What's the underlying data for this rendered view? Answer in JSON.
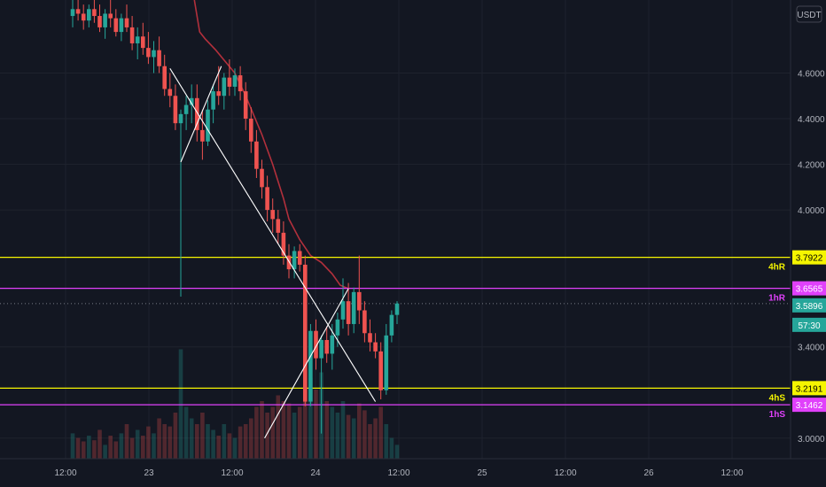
{
  "chart_data": {
    "type": "candlestick",
    "currency": "USDT",
    "xticks": [
      "12:00",
      "23",
      "12:00",
      "24",
      "12:00",
      "25",
      "12:00",
      "26",
      "12:00"
    ],
    "yticks": [
      {
        "value": 4.6,
        "label": "4.6000"
      },
      {
        "value": 4.4,
        "label": "4.4000"
      },
      {
        "value": 4.2,
        "label": "4.2000"
      },
      {
        "value": 4.0,
        "label": "4.0000"
      },
      {
        "value": 3.4,
        "label": "3.4000"
      },
      {
        "value": 3.0,
        "label": "3.0000"
      }
    ],
    "ylim": [
      2.91,
      4.92
    ],
    "price_lines": [
      {
        "name": "4hR",
        "value": 3.7922,
        "price_label": "3.7922",
        "color": "#f5f500",
        "text_color": "#000000"
      },
      {
        "name": "1hR",
        "value": 3.6565,
        "price_label": "3.6565",
        "color": "#e040fb",
        "text_color": "#ffffff"
      },
      {
        "name": "4hS",
        "value": 3.2191,
        "price_label": "3.2191",
        "color": "#f5f500",
        "text_color": "#000000"
      },
      {
        "name": "1hS",
        "value": 3.1462,
        "price_label": "3.1462",
        "color": "#e040fb",
        "text_color": "#ffffff"
      }
    ],
    "current_price": {
      "value": 3.5896,
      "label": "3.5896",
      "countdown": "57:30",
      "color": "#26a69a"
    },
    "candles": [
      [
        4.85,
        4.92,
        4.8,
        4.88
      ],
      [
        4.88,
        4.92,
        4.83,
        4.86
      ],
      [
        4.86,
        4.9,
        4.79,
        4.83
      ],
      [
        4.83,
        4.9,
        4.8,
        4.88
      ],
      [
        4.88,
        4.92,
        4.82,
        4.85
      ],
      [
        4.85,
        4.9,
        4.78,
        4.8
      ],
      [
        4.8,
        4.88,
        4.75,
        4.86
      ],
      [
        4.86,
        4.92,
        4.8,
        4.84
      ],
      [
        4.84,
        4.88,
        4.76,
        4.78
      ],
      [
        4.78,
        4.86,
        4.74,
        4.84
      ],
      [
        4.84,
        4.9,
        4.78,
        4.8
      ],
      [
        4.8,
        4.85,
        4.7,
        4.73
      ],
      [
        4.73,
        4.8,
        4.66,
        4.76
      ],
      [
        4.76,
        4.82,
        4.68,
        4.71
      ],
      [
        4.71,
        4.78,
        4.64,
        4.67
      ],
      [
        4.67,
        4.74,
        4.6,
        4.7
      ],
      [
        4.7,
        4.76,
        4.6,
        4.63
      ],
      [
        4.63,
        4.68,
        4.5,
        4.53
      ],
      [
        4.53,
        4.6,
        4.45,
        4.5
      ],
      [
        4.5,
        4.55,
        4.35,
        4.38
      ],
      [
        4.38,
        4.44,
        3.62,
        4.42
      ],
      [
        4.42,
        4.5,
        4.35,
        4.46
      ],
      [
        4.46,
        4.55,
        4.38,
        4.49
      ],
      [
        4.49,
        4.55,
        4.3,
        4.35
      ],
      [
        4.35,
        4.44,
        4.22,
        4.3
      ],
      [
        4.3,
        4.48,
        4.28,
        4.44
      ],
      [
        4.44,
        4.55,
        4.38,
        4.52
      ],
      [
        4.52,
        4.63,
        4.46,
        4.5
      ],
      [
        4.5,
        4.6,
        4.44,
        4.58
      ],
      [
        4.58,
        4.66,
        4.5,
        4.54
      ],
      [
        4.54,
        4.62,
        4.5,
        4.59
      ],
      [
        4.59,
        4.63,
        4.48,
        4.52
      ],
      [
        4.52,
        4.56,
        4.35,
        4.4
      ],
      [
        4.4,
        4.45,
        4.25,
        4.3
      ],
      [
        4.3,
        4.35,
        4.14,
        4.18
      ],
      [
        4.18,
        4.22,
        4.05,
        4.1
      ],
      [
        4.1,
        4.15,
        3.95,
        4.0
      ],
      [
        4.0,
        4.05,
        3.9,
        3.96
      ],
      [
        3.96,
        4.0,
        3.85,
        3.9
      ],
      [
        3.9,
        3.95,
        3.76,
        3.8
      ],
      [
        3.8,
        3.85,
        3.7,
        3.74
      ],
      [
        3.74,
        3.84,
        3.7,
        3.82
      ],
      [
        3.82,
        3.85,
        3.73,
        3.76
      ],
      [
        3.76,
        3.8,
        3.14,
        3.16
      ],
      [
        3.16,
        3.5,
        3.14,
        3.47
      ],
      [
        3.47,
        3.52,
        3.3,
        3.35
      ],
      [
        3.35,
        3.45,
        3.02,
        3.43
      ],
      [
        3.43,
        3.49,
        3.33,
        3.37
      ],
      [
        3.37,
        3.5,
        3.3,
        3.45
      ],
      [
        3.45,
        3.55,
        3.4,
        3.52
      ],
      [
        3.52,
        3.7,
        3.48,
        3.6
      ],
      [
        3.6,
        3.68,
        3.45,
        3.5
      ],
      [
        3.5,
        3.66,
        3.46,
        3.64
      ],
      [
        3.64,
        3.8,
        3.5,
        3.56
      ],
      [
        3.56,
        3.6,
        3.42,
        3.46
      ],
      [
        3.46,
        3.52,
        3.38,
        3.42
      ],
      [
        3.42,
        3.46,
        3.35,
        3.38
      ],
      [
        3.38,
        3.42,
        3.17,
        3.21
      ],
      [
        3.21,
        3.5,
        3.19,
        3.45
      ],
      [
        3.45,
        3.56,
        3.42,
        3.54
      ],
      [
        3.54,
        3.6,
        3.5,
        3.59
      ]
    ],
    "volumes": [
      0.22,
      0.18,
      0.15,
      0.2,
      0.16,
      0.25,
      0.12,
      0.2,
      0.15,
      0.22,
      0.3,
      0.18,
      0.25,
      0.2,
      0.28,
      0.22,
      0.35,
      0.3,
      0.28,
      0.4,
      0.95,
      0.45,
      0.35,
      0.3,
      0.4,
      0.3,
      0.25,
      0.2,
      0.3,
      0.22,
      0.18,
      0.28,
      0.3,
      0.35,
      0.45,
      0.5,
      0.4,
      0.45,
      0.55,
      0.5,
      0.48,
      0.4,
      0.45,
      0.85,
      0.7,
      0.6,
      0.75,
      0.5,
      0.45,
      0.4,
      0.5,
      0.38,
      0.35,
      0.48,
      0.42,
      0.3,
      0.35,
      0.45,
      0.3,
      0.18,
      0.12
    ],
    "moving_average": [
      [
        22.5,
        4.92
      ],
      [
        23.5,
        4.78
      ],
      [
        24.5,
        4.75
      ],
      [
        26.5,
        4.7
      ],
      [
        30,
        4.6
      ],
      [
        32,
        4.5
      ],
      [
        35,
        4.33
      ],
      [
        37,
        4.2
      ],
      [
        39,
        4.05
      ],
      [
        40,
        3.96
      ],
      [
        42,
        3.87
      ],
      [
        44,
        3.8
      ],
      [
        46,
        3.77
      ],
      [
        48,
        3.72
      ],
      [
        49.5,
        3.67
      ],
      [
        51,
        3.655
      ]
    ],
    "trendlines": [
      {
        "from": [
          18,
          4.62
        ],
        "to": [
          56,
          3.16
        ],
        "color": "#ffffff"
      },
      {
        "from": [
          20,
          4.21
        ],
        "to": [
          27.5,
          4.63
        ],
        "color": "#ffffff"
      },
      {
        "from": [
          35.5,
          3.0
        ],
        "to": [
          51,
          3.655
        ],
        "color": "#ffffff"
      }
    ]
  }
}
